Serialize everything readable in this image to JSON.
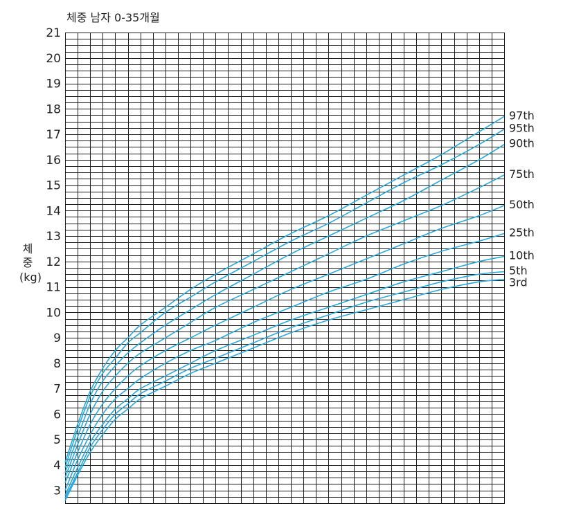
{
  "chart_data": {
    "type": "line",
    "title": "체중 남자 0-35개월",
    "ylabel_line1": "체",
    "ylabel_line2": "중",
    "ylabel_unit": "(kg)",
    "xlabel": "",
    "xlim": [
      0,
      35
    ],
    "ylim": [
      2.5,
      21
    ],
    "y_ticks": [
      3,
      4,
      5,
      6,
      7,
      8,
      9,
      10,
      11,
      12,
      13,
      14,
      15,
      16,
      17,
      18,
      19,
      20,
      21
    ],
    "grid": true,
    "line_color": "#2aa7dc",
    "x": [
      0,
      1,
      2,
      3,
      4,
      5,
      6,
      8,
      10,
      12,
      15,
      18,
      21,
      24,
      27,
      30,
      33,
      35
    ],
    "series": [
      {
        "name": "97th",
        "values": [
          4.1,
          5.6,
          6.9,
          7.8,
          8.5,
          9.0,
          9.5,
          10.2,
          10.9,
          11.5,
          12.3,
          13.1,
          13.8,
          14.6,
          15.4,
          16.2,
          17.1,
          17.7
        ]
      },
      {
        "name": "95th",
        "values": [
          3.9,
          5.4,
          6.7,
          7.6,
          8.2,
          8.8,
          9.2,
          10.0,
          10.6,
          11.2,
          12.0,
          12.8,
          13.5,
          14.3,
          15.1,
          15.8,
          16.6,
          17.2
        ]
      },
      {
        "name": "90th",
        "values": [
          3.7,
          5.1,
          6.4,
          7.3,
          7.9,
          8.4,
          8.8,
          9.5,
          10.1,
          10.7,
          11.5,
          12.3,
          13.0,
          13.7,
          14.4,
          15.2,
          16.0,
          16.6
        ]
      },
      {
        "name": "75th",
        "values": [
          3.5,
          4.8,
          6.0,
          6.9,
          7.5,
          8.0,
          8.4,
          9.0,
          9.6,
          10.2,
          10.9,
          11.6,
          12.3,
          13.0,
          13.6,
          14.2,
          14.9,
          15.4
        ]
      },
      {
        "name": "50th",
        "values": [
          3.3,
          4.5,
          5.6,
          6.4,
          7.0,
          7.5,
          7.9,
          8.5,
          9.0,
          9.5,
          10.2,
          10.9,
          11.5,
          12.1,
          12.7,
          13.3,
          13.8,
          14.2
        ]
      },
      {
        "name": "25th",
        "values": [
          3.0,
          4.2,
          5.2,
          6.0,
          6.6,
          7.0,
          7.4,
          8.0,
          8.5,
          8.9,
          9.6,
          10.2,
          10.8,
          11.3,
          11.9,
          12.4,
          12.8,
          13.1
        ]
      },
      {
        "name": "10th",
        "values": [
          2.8,
          3.9,
          4.9,
          5.6,
          6.2,
          6.6,
          7.0,
          7.5,
          8.0,
          8.5,
          9.1,
          9.7,
          10.2,
          10.7,
          11.2,
          11.6,
          12.0,
          12.2
        ]
      },
      {
        "name": "5th",
        "values": [
          2.7,
          3.7,
          4.7,
          5.4,
          6.0,
          6.4,
          6.8,
          7.3,
          7.8,
          8.2,
          8.8,
          9.4,
          9.9,
          10.4,
          10.8,
          11.2,
          11.5,
          11.6
        ]
      },
      {
        "name": "3rd",
        "values": [
          2.6,
          3.6,
          4.5,
          5.2,
          5.8,
          6.2,
          6.6,
          7.1,
          7.6,
          8.0,
          8.6,
          9.2,
          9.7,
          10.1,
          10.5,
          10.9,
          11.2,
          11.3
        ]
      }
    ]
  }
}
